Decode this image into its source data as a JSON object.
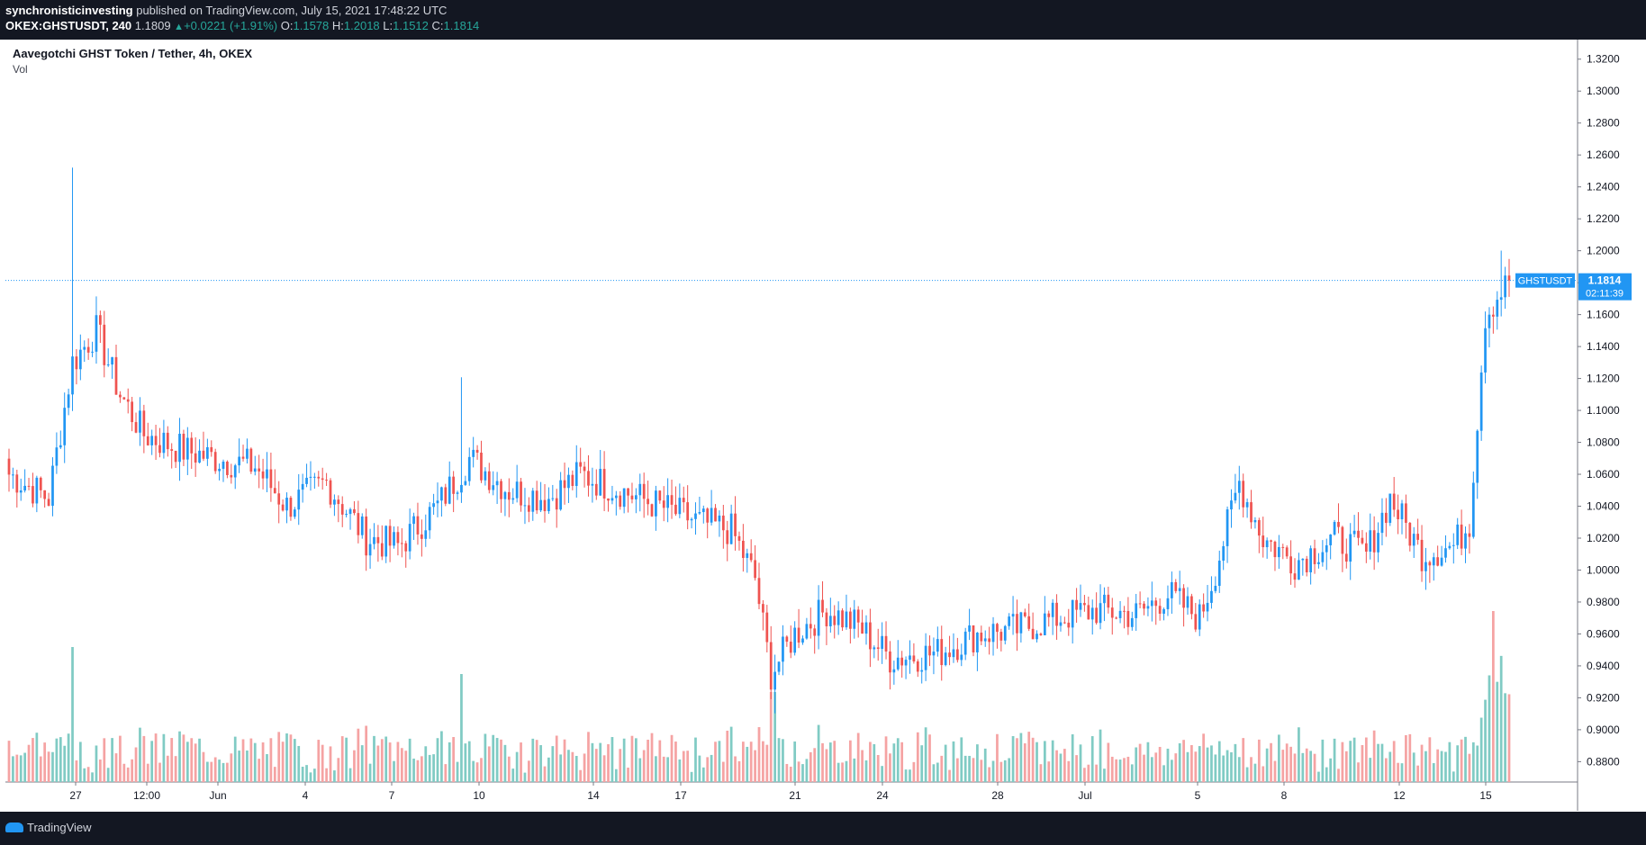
{
  "header": {
    "publisher": "synchronisticinvesting",
    "published_text": "published on TradingView.com, July 15, 2021 17:48:22 UTC",
    "symbol": "OKEX:GHSTUSDT, 240",
    "last": "1.1809",
    "change": "+0.0221 (+1.91%)",
    "open_label": "O:",
    "open": "1.1578",
    "high_label": "H:",
    "high": "1.2018",
    "low_label": "L:",
    "low": "1.1512",
    "close_label": "C:",
    "close": "1.1814"
  },
  "legend": {
    "title": "Aavegotchi GHST Token / Tether, 4h, OKEX",
    "vol_label": "Vol"
  },
  "price_tag": {
    "symbol": "GHSTUSDT",
    "price": "1.1814",
    "countdown": "02:11:39"
  },
  "footer": {
    "brand": "TradingView"
  },
  "colors": {
    "up": "#26a69a",
    "down": "#ef5350",
    "candle_up": "#2196f3",
    "candle_down": "#ef5350",
    "vol_up": "#80cbc4",
    "vol_down": "#f5a3a3",
    "tag": "#2196f3"
  },
  "chart_data": {
    "type": "candlestick",
    "title": "Aavegotchi GHST Token / Tether, 4h, OKEX",
    "y_ticks": [
      "1.3200",
      "1.3000",
      "1.2800",
      "1.2600",
      "1.2400",
      "1.2200",
      "1.2000",
      "1.1800",
      "1.1600",
      "1.1400",
      "1.1200",
      "1.1000",
      "1.0800",
      "1.0600",
      "1.0400",
      "1.0200",
      "1.0000",
      "0.9800",
      "0.9600",
      "0.9400",
      "0.9200",
      "0.9000",
      "0.8800"
    ],
    "ylim": [
      0.865,
      1.33
    ],
    "x_ticks": [
      "27",
      "12:00",
      "Jun",
      "4",
      "7",
      "10",
      "14",
      "17",
      "21",
      "24",
      "28",
      "Jul",
      "5",
      "8",
      "12",
      "15"
    ],
    "keypoints": [
      {
        "i": 0,
        "p": 1.06
      },
      {
        "i": 10,
        "p": 1.045
      },
      {
        "i": 16,
        "p": 1.13
      },
      {
        "i": 22,
        "p": 1.15
      },
      {
        "i": 28,
        "p": 1.11
      },
      {
        "i": 34,
        "p": 1.085
      },
      {
        "i": 44,
        "p": 1.075
      },
      {
        "i": 52,
        "p": 1.07
      },
      {
        "i": 62,
        "p": 1.065
      },
      {
        "i": 70,
        "p": 1.04
      },
      {
        "i": 80,
        "p": 1.055
      },
      {
        "i": 90,
        "p": 1.02
      },
      {
        "i": 98,
        "p": 1.015
      },
      {
        "i": 108,
        "p": 1.04
      },
      {
        "i": 116,
        "p": 1.07
      },
      {
        "i": 126,
        "p": 1.05
      },
      {
        "i": 136,
        "p": 1.045
      },
      {
        "i": 144,
        "p": 1.06
      },
      {
        "i": 154,
        "p": 1.05
      },
      {
        "i": 164,
        "p": 1.04
      },
      {
        "i": 174,
        "p": 1.03
      },
      {
        "i": 182,
        "p": 1.025
      },
      {
        "i": 188,
        "p": 0.995
      },
      {
        "i": 192,
        "p": 0.935
      },
      {
        "i": 198,
        "p": 0.96
      },
      {
        "i": 206,
        "p": 0.975
      },
      {
        "i": 214,
        "p": 0.965
      },
      {
        "i": 222,
        "p": 0.945
      },
      {
        "i": 234,
        "p": 0.948
      },
      {
        "i": 244,
        "p": 0.96
      },
      {
        "i": 254,
        "p": 0.963
      },
      {
        "i": 264,
        "p": 0.97
      },
      {
        "i": 274,
        "p": 0.975
      },
      {
        "i": 284,
        "p": 0.972
      },
      {
        "i": 292,
        "p": 0.985
      },
      {
        "i": 300,
        "p": 0.97
      },
      {
        "i": 304,
        "p": 1.0
      },
      {
        "i": 310,
        "p": 1.055
      },
      {
        "i": 316,
        "p": 1.02
      },
      {
        "i": 324,
        "p": 1.005
      },
      {
        "i": 334,
        "p": 1.02
      },
      {
        "i": 342,
        "p": 1.01
      },
      {
        "i": 348,
        "p": 1.045
      },
      {
        "i": 356,
        "p": 1.01
      },
      {
        "i": 364,
        "p": 1.015
      },
      {
        "i": 368,
        "p": 1.03
      },
      {
        "i": 372,
        "p": 1.16
      },
      {
        "i": 376,
        "p": 1.175
      },
      {
        "i": 378,
        "p": 1.18
      }
    ],
    "last_price": 1.1814,
    "volume_scale": "relative"
  }
}
